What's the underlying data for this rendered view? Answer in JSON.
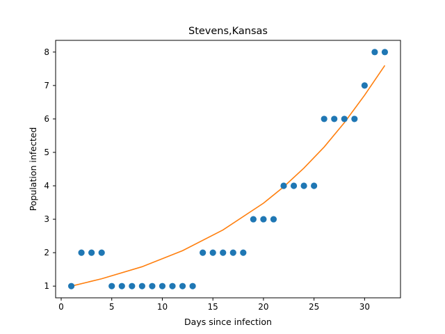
{
  "chart_data": {
    "type": "scatter",
    "title": "Stevens,Kansas",
    "xlabel": "Days since infection",
    "ylabel": "Population infected",
    "xlim": [
      -0.55,
      33.55
    ],
    "ylim": [
      0.65,
      8.35
    ],
    "xticks": [
      0,
      5,
      10,
      15,
      20,
      25,
      30
    ],
    "yticks": [
      1,
      2,
      3,
      4,
      5,
      6,
      7,
      8
    ],
    "grid": false,
    "series": [
      {
        "kind": "scatter",
        "color": "#1f77b4",
        "x": [
          1,
          2,
          3,
          4,
          5,
          6,
          7,
          8,
          9,
          10,
          11,
          12,
          13,
          14,
          15,
          16,
          17,
          18,
          19,
          20,
          21,
          22,
          23,
          24,
          25,
          26,
          27,
          28,
          29,
          30,
          31,
          32
        ],
        "y": [
          1,
          2,
          2,
          2,
          1,
          1,
          1,
          1,
          1,
          1,
          1,
          1,
          1,
          2,
          2,
          2,
          2,
          2,
          3,
          3,
          3,
          4,
          4,
          4,
          4,
          6,
          6,
          6,
          6,
          7,
          8,
          8
        ]
      },
      {
        "kind": "line",
        "color": "#ff7f0e",
        "x": [
          1,
          4,
          8,
          12,
          16,
          20,
          22,
          24,
          26,
          28,
          30,
          32
        ],
        "y": [
          1.0,
          1.22,
          1.58,
          2.06,
          2.68,
          3.48,
          3.97,
          4.53,
          5.16,
          5.89,
          6.71,
          7.6
        ]
      }
    ]
  }
}
